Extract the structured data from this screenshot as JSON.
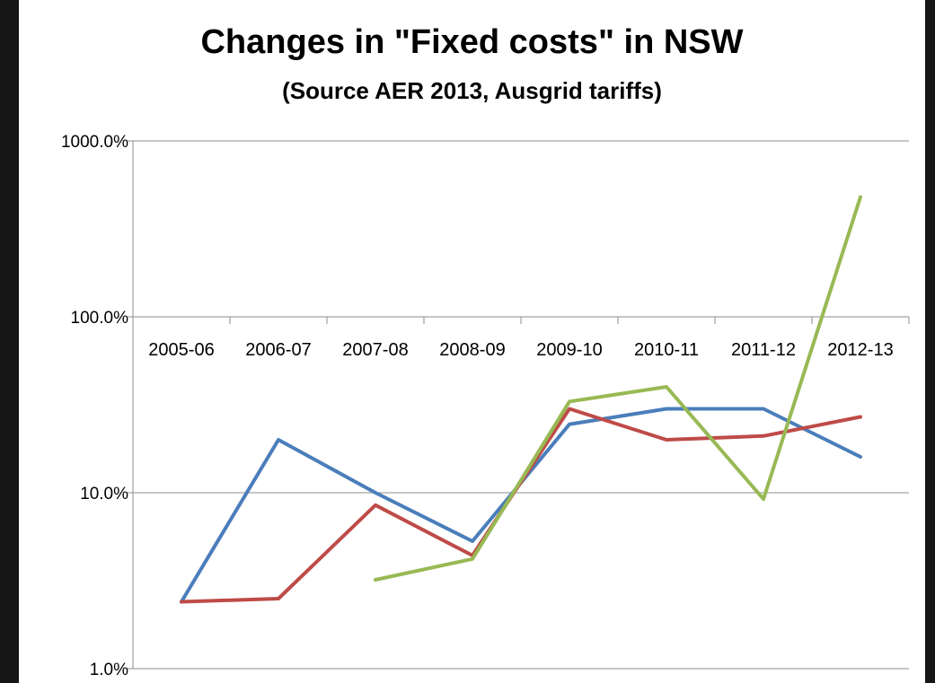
{
  "chart_data": {
    "type": "line",
    "title": "Changes in \"Fixed costs\" in NSW",
    "subtitle": "(Source AER 2013, Ausgrid tariffs)",
    "xlabel": "",
    "ylabel": "",
    "y_scale": "log",
    "ylim": [
      1,
      1000
    ],
    "y_ticks": [
      1,
      10,
      100,
      1000
    ],
    "y_tick_labels": [
      "1.0%",
      "10.0%",
      "100.0%",
      "1000.0%"
    ],
    "grid": "horizontal",
    "legend": "none",
    "categories": [
      "2005-06",
      "2006-07",
      "2007-08",
      "2008-09",
      "2009-10",
      "2010-11",
      "2011-12",
      "2012-13"
    ],
    "series": [
      {
        "color": "#4a7ebb",
        "values": [
          2.4,
          20,
          10,
          5.3,
          24.5,
          30,
          30,
          16
        ]
      },
      {
        "color": "#be4b48",
        "values": [
          2.4,
          2.5,
          8.5,
          4.4,
          30,
          20,
          21,
          27
        ]
      },
      {
        "color": "#98b954",
        "values": [
          null,
          null,
          3.2,
          4.2,
          33,
          40,
          9.2,
          480
        ]
      }
    ]
  }
}
